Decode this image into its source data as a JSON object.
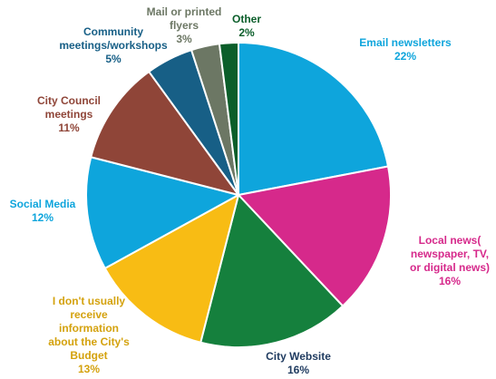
{
  "chart_data": {
    "type": "pie",
    "start_angle_deg": 0,
    "direction": "clockwise",
    "slices": [
      {
        "label": [
          "Email newsletters"
        ],
        "pct_text": "22%",
        "value": 22,
        "color": "#0ea5dc",
        "label_color": "#0ea5dc"
      },
      {
        "label": [
          "Local news(",
          "newspaper, TV,",
          "or digital news)"
        ],
        "pct_text": "16%",
        "value": 16,
        "color": "#d6298b",
        "label_color": "#d6298b"
      },
      {
        "label": [
          "City Website"
        ],
        "pct_text": "16%",
        "value": 16,
        "color": "#15803d",
        "label_color": "#1e3a5f"
      },
      {
        "label": [
          "I don't usually",
          "receive",
          "information",
          "about the City's",
          "Budget"
        ],
        "pct_text": "13%",
        "value": 13,
        "color": "#f8bc14",
        "label_color": "#d4a20e"
      },
      {
        "label": [
          "Social Media"
        ],
        "pct_text": "12%",
        "value": 12,
        "color": "#0ea5dc",
        "label_color": "#0ea5dc"
      },
      {
        "label": [
          "City Council",
          "meetings"
        ],
        "pct_text": "11%",
        "value": 11,
        "color": "#8f4538",
        "label_color": "#8f4538"
      },
      {
        "label": [
          "Community",
          "meetings/workshops"
        ],
        "pct_text": "5%",
        "value": 5,
        "color": "#175f86",
        "label_color": "#175f86"
      },
      {
        "label": [
          "Mail or printed",
          "flyers"
        ],
        "pct_text": "3%",
        "value": 3,
        "color": "#6c7764",
        "label_color": "#6c7764"
      },
      {
        "label": [
          "Other"
        ],
        "pct_text": "2%",
        "value": 2,
        "color": "#0b5e2a",
        "label_color": "#0b5e2a"
      }
    ]
  }
}
